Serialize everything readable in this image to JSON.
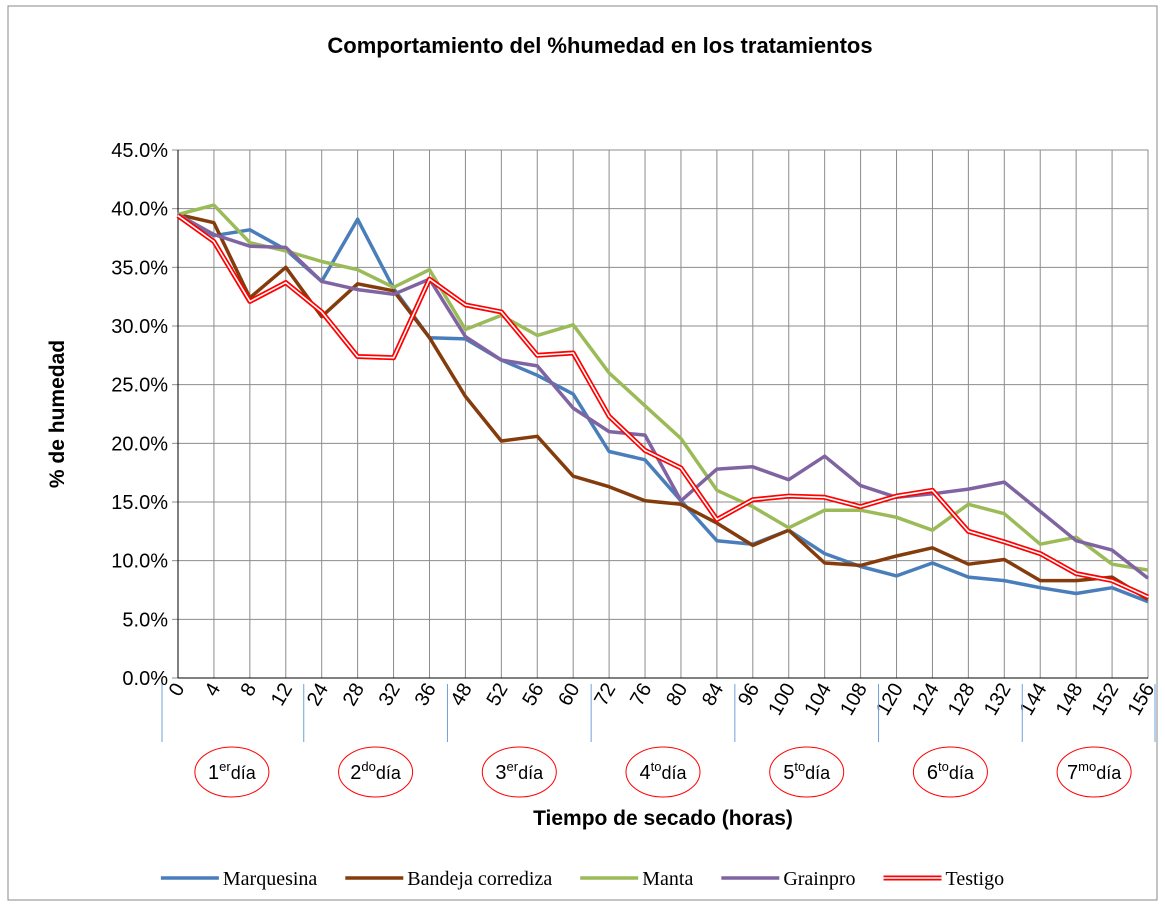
{
  "chart_data": {
    "type": "line",
    "title": "Comportamiento del %humedad en los tratamientos",
    "y_label": "% de humedad",
    "x_label": "Tiempo de secado (horas)",
    "categories": [
      "0",
      "4",
      "8",
      "12",
      "24",
      "28",
      "32",
      "36",
      "48",
      "52",
      "56",
      "60",
      "72",
      "76",
      "80",
      "84",
      "96",
      "100",
      "104",
      "108",
      "120",
      "124",
      "128",
      "132",
      "144",
      "148",
      "152",
      "156"
    ],
    "series": [
      {
        "name": "Marquesina",
        "color": "#4a7ebb",
        "values": [
          39.5,
          37.7,
          38.2,
          36.5,
          33.8,
          39.1,
          33.2,
          29.0,
          28.9,
          27.1,
          25.8,
          24.2,
          19.3,
          18.6,
          15.1,
          11.7,
          11.4,
          12.6,
          10.6,
          9.5,
          8.7,
          9.8,
          8.6,
          8.3,
          7.7,
          7.2,
          7.7,
          6.5
        ]
      },
      {
        "name": "Bandeja corrediza",
        "color": "#843c0c",
        "values": [
          39.5,
          38.8,
          32.4,
          35.0,
          30.8,
          33.6,
          33.0,
          29.0,
          24.0,
          20.2,
          20.6,
          17.2,
          16.3,
          15.1,
          14.8,
          13.2,
          11.3,
          12.6,
          9.8,
          9.6,
          10.4,
          11.1,
          9.7,
          10.1,
          8.3,
          8.3,
          8.6,
          6.7
        ]
      },
      {
        "name": "Manta",
        "color": "#9bbb59",
        "values": [
          39.5,
          40.3,
          37.1,
          36.4,
          35.5,
          34.8,
          33.3,
          34.8,
          29.7,
          30.9,
          29.2,
          30.1,
          26.0,
          23.2,
          20.4,
          16.0,
          14.6,
          12.8,
          14.3,
          14.3,
          13.7,
          12.6,
          14.8,
          14.0,
          11.4,
          12.0,
          9.7,
          9.2
        ]
      },
      {
        "name": "Grainpro",
        "color": "#8064a2",
        "values": [
          39.5,
          37.8,
          36.8,
          36.7,
          33.8,
          33.1,
          32.7,
          34.0,
          29.1,
          27.1,
          26.6,
          23.0,
          21.0,
          20.7,
          15.1,
          17.8,
          18.0,
          16.9,
          18.9,
          16.4,
          15.4,
          15.7,
          16.1,
          16.7,
          14.2,
          11.7,
          10.9,
          8.5
        ]
      },
      {
        "name": "Testigo",
        "color": "#ff0000",
        "line_style": "double",
        "values": [
          39.4,
          37.2,
          32.1,
          33.7,
          31.2,
          27.4,
          27.3,
          34.0,
          31.8,
          31.2,
          27.5,
          27.7,
          22.3,
          19.4,
          17.9,
          13.5,
          15.2,
          15.5,
          15.4,
          14.6,
          15.5,
          16.0,
          12.5,
          11.6,
          10.6,
          8.9,
          8.3,
          6.9
        ]
      }
    ],
    "ylim": [
      0,
      45
    ],
    "yticks": [
      {
        "value": 0,
        "label": "0.0%"
      },
      {
        "value": 5,
        "label": "5.0%"
      },
      {
        "value": 10,
        "label": "10.0%"
      },
      {
        "value": 15,
        "label": "15.0%"
      },
      {
        "value": 20,
        "label": "20.0%"
      },
      {
        "value": 25,
        "label": "25.0%"
      },
      {
        "value": 30,
        "label": "30.0%"
      },
      {
        "value": 35,
        "label": "35.0%"
      },
      {
        "value": 40,
        "label": "40.0%"
      },
      {
        "value": 45,
        "label": "45.0%"
      }
    ],
    "grid": true,
    "legend": "bottom",
    "day_labels": [
      {
        "number": "1",
        "sup": "er",
        "word": "día"
      },
      {
        "number": "2",
        "sup": "do",
        "word": "día"
      },
      {
        "number": "3",
        "sup": "er",
        "word": "día"
      },
      {
        "number": "4",
        "sup": "to",
        "word": "día"
      },
      {
        "number": "5",
        "sup": "to",
        "word": "día"
      },
      {
        "number": "6",
        "sup": "to",
        "word": "día"
      },
      {
        "number": "7",
        "sup": "mo",
        "word": "día"
      }
    ]
  }
}
